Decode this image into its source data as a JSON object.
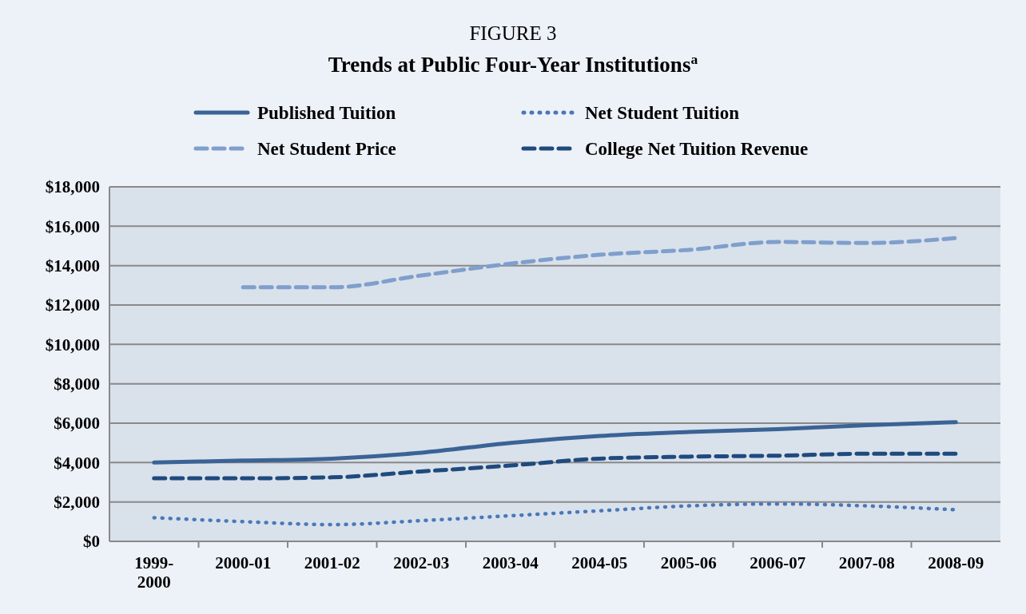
{
  "chart_data": {
    "type": "line",
    "title": "FIGURE 3",
    "subtitle": "Trends at Public Four-Year Institutions$^{a}$",
    "categories": [
      "1999-2000",
      "2000-01",
      "2001-02",
      "2002-03",
      "2003-04",
      "2004-05",
      "2005-06",
      "2006-07",
      "2007-08",
      "2008-09"
    ],
    "series": [
      {
        "name": "Published Tuition",
        "color": "#3a6396",
        "line_style": "solid",
        "values": [
          4000,
          4100,
          4200,
          4500,
          5000,
          5350,
          5550,
          5700,
          5900,
          6050
        ]
      },
      {
        "name": "Net Student Tuition",
        "color": "#4a78b8",
        "line_style": "dotted",
        "values": [
          1200,
          1000,
          850,
          1050,
          1300,
          1550,
          1800,
          1900,
          1800,
          1600
        ]
      },
      {
        "name": "Net Student Price",
        "color": "#7f9fcc",
        "line_style": "dashed",
        "values": [
          null,
          12900,
          12900,
          13500,
          14100,
          14550,
          14800,
          15200,
          15150,
          15400
        ]
      },
      {
        "name": "College Net Tuition Revenue",
        "color": "#1f4a7e",
        "line_style": "dashed",
        "values": [
          3200,
          3200,
          3250,
          3550,
          3850,
          4200,
          4300,
          4350,
          4450,
          4450
        ]
      }
    ],
    "ylim": [
      0,
      18000
    ],
    "yticks": [
      {
        "value": 0,
        "label": "$0"
      },
      {
        "value": 2000,
        "label": "$2,000"
      },
      {
        "value": 4000,
        "label": "$4,000"
      },
      {
        "value": 6000,
        "label": "$6,000"
      },
      {
        "value": 8000,
        "label": "$8,000"
      },
      {
        "value": 10000,
        "label": "$10,000"
      },
      {
        "value": 12000,
        "label": "$12,000"
      },
      {
        "value": 14000,
        "label": "$14,000"
      },
      {
        "value": 16000,
        "label": "$16,000"
      },
      {
        "value": 18000,
        "label": "$18,000"
      }
    ],
    "grid": "y",
    "legend": "top",
    "marker": "none"
  }
}
